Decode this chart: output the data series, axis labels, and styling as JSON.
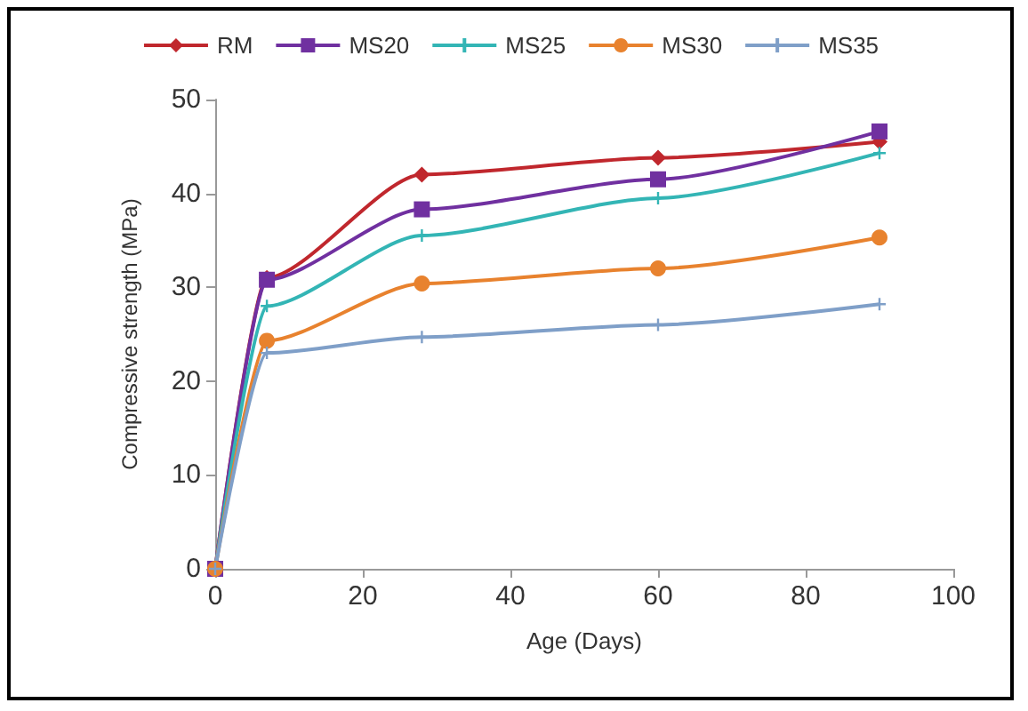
{
  "chart_data": {
    "type": "line",
    "xlabel": "Age (Days)",
    "ylabel": "Compressive strength (MPa)",
    "x": [
      0,
      7,
      28,
      60,
      90
    ],
    "xlim": [
      0,
      100
    ],
    "xticks": [
      0,
      20,
      40,
      60,
      80,
      100
    ],
    "ylim": [
      0,
      50
    ],
    "yticks": [
      0,
      10,
      20,
      30,
      40,
      50
    ],
    "grid": false,
    "legend": "top",
    "series": [
      {
        "name": "RM",
        "color": "#c0272d",
        "marker": "diamond",
        "values": [
          0,
          31,
          42,
          43.8,
          45.5
        ]
      },
      {
        "name": "MS20",
        "color": "#7030a0",
        "marker": "square",
        "values": [
          0,
          30.8,
          38.3,
          41.5,
          46.6
        ]
      },
      {
        "name": "MS25",
        "color": "#33b5b5",
        "marker": "cross",
        "values": [
          0,
          28,
          35.5,
          39.5,
          44.3
        ]
      },
      {
        "name": "MS30",
        "color": "#e8822e",
        "marker": "circle",
        "values": [
          0,
          24.3,
          30.4,
          32,
          35.3
        ]
      },
      {
        "name": "MS35",
        "color": "#7f9fc8",
        "marker": "cross",
        "values": [
          0,
          23,
          24.7,
          26,
          28.2
        ]
      }
    ]
  }
}
